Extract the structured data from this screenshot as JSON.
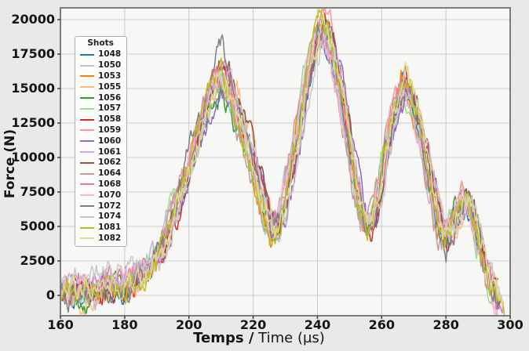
{
  "colors": {
    "figure_bg": "#e9e9e7",
    "plot_bg": "#f7f7f5",
    "grid": "#cbcbcb",
    "spine": "#7d7d7d",
    "tick": "#333333",
    "text": "#151515",
    "legend_bg": "#fbfbf9",
    "legend_border": "#b0b0b0"
  },
  "chart_data": {
    "type": "line",
    "title": "",
    "xlabel": "Temps / Time (µs)",
    "xlabel_bold": "Temps /",
    "xlabel_regular": " Time (µs)",
    "ylabel": "Force (N)",
    "xlim": [
      160,
      300
    ],
    "ylim": [
      -1480,
      20850
    ],
    "xticks": [
      160,
      180,
      200,
      220,
      240,
      260,
      280,
      300
    ],
    "yticks": [
      0,
      2500,
      5000,
      7500,
      10000,
      12500,
      15000,
      17500,
      20000
    ],
    "grid": true,
    "legend": {
      "title": "Shots",
      "position": "upper-left"
    },
    "description": "18 overlapping noisy force-vs-time shot traces; three main peaks near t=210 (~15700 N), t=242 (~19600-20400 N), t=267 (~15600 N), dips near t=226 (~4500 N), t=256 (~4900 N), t=280 (~3900 N), small rebound bump near t=286 (~7100 N), decaying to ~-900 N by t=298",
    "envelope_keypoints": {
      "t": [
        160,
        166,
        172,
        178,
        183,
        188,
        193,
        197,
        201,
        205,
        208,
        210,
        212,
        215,
        219,
        223,
        226,
        229,
        233,
        237,
        240,
        242,
        244,
        247,
        251,
        254,
        256,
        258,
        261,
        264,
        267,
        269,
        272,
        275,
        278,
        280,
        283,
        286,
        288,
        290,
        292,
        294,
        296,
        298.5
      ],
      "force": [
        150,
        150,
        250,
        500,
        900,
        2000,
        4200,
        7000,
        9900,
        13100,
        15200,
        15700,
        15100,
        13300,
        10300,
        6900,
        4500,
        5700,
        10100,
        15600,
        18700,
        19600,
        18500,
        15400,
        9800,
        5900,
        4900,
        6100,
        10100,
        13700,
        15600,
        14800,
        12100,
        8700,
        5300,
        3950,
        5600,
        7100,
        6400,
        4600,
        2600,
        950,
        -300,
        -950
      ]
    },
    "peak_centers_us": [
      210,
      242,
      267
    ],
    "noise_step_us": 0.35,
    "series": [
      {
        "name": "1048",
        "color": "#1f77b4",
        "peak_scales": [
          0.97,
          0.95,
          0.96
        ],
        "time_shift_us": 0.3,
        "noise_scale": 1.0,
        "start_lift_n": 0,
        "end_time_us": 296,
        "seed": 1
      },
      {
        "name": "1050",
        "color": "#aec7e8",
        "peak_scales": [
          1.0,
          0.99,
          0.98
        ],
        "time_shift_us": -0.5,
        "noise_scale": 1.0,
        "start_lift_n": 0,
        "end_time_us": 297,
        "seed": 2
      },
      {
        "name": "1053",
        "color": "#ff7f0e",
        "peak_scales": [
          1.0,
          1.01,
          1.01
        ],
        "time_shift_us": 0.8,
        "noise_scale": 1.05,
        "start_lift_n": 0,
        "end_time_us": 294.5,
        "seed": 3
      },
      {
        "name": "1055",
        "color": "#ffbb78",
        "peak_scales": [
          1.02,
          1.02,
          0.99
        ],
        "time_shift_us": -0.9,
        "noise_scale": 1.0,
        "start_lift_n": 0,
        "end_time_us": 297.5,
        "seed": 4
      },
      {
        "name": "1056",
        "color": "#2ca02c",
        "peak_scales": [
          0.95,
          0.97,
          0.97
        ],
        "time_shift_us": 0.5,
        "noise_scale": 0.95,
        "start_lift_n": 0,
        "end_time_us": 296,
        "seed": 5
      },
      {
        "name": "1057",
        "color": "#98df8a",
        "peak_scales": [
          0.98,
          0.99,
          0.95
        ],
        "time_shift_us": 1.1,
        "noise_scale": 0.95,
        "start_lift_n": 0,
        "end_time_us": 295,
        "seed": 6
      },
      {
        "name": "1058",
        "color": "#d62728",
        "peak_scales": [
          1.02,
          1.03,
          1.04
        ],
        "time_shift_us": -0.3,
        "noise_scale": 1.0,
        "start_lift_n": 0,
        "end_time_us": 296.5,
        "seed": 7
      },
      {
        "name": "1059",
        "color": "#ff9896",
        "peak_scales": [
          1.05,
          1.04,
          0.98
        ],
        "time_shift_us": 0.2,
        "noise_scale": 1.0,
        "start_lift_n": 0,
        "end_time_us": 297,
        "seed": 8
      },
      {
        "name": "1060",
        "color": "#9467bd",
        "peak_scales": [
          0.98,
          1.0,
          0.97
        ],
        "time_shift_us": -1.2,
        "noise_scale": 1.0,
        "start_lift_n": 0,
        "end_time_us": 295.5,
        "seed": 9
      },
      {
        "name": "1061",
        "color": "#c5b0d5",
        "peak_scales": [
          1.01,
          0.98,
          0.96
        ],
        "time_shift_us": 0.6,
        "noise_scale": 1.0,
        "start_lift_n": 0,
        "end_time_us": 296,
        "seed": 10
      },
      {
        "name": "1062",
        "color": "#8c564b",
        "peak_scales": [
          1.03,
          1.02,
          1.0
        ],
        "time_shift_us": -0.7,
        "noise_scale": 1.0,
        "start_lift_n": 0,
        "end_time_us": 297,
        "seed": 11
      },
      {
        "name": "1064",
        "color": "#c49c94",
        "peak_scales": [
          0.99,
          0.99,
          0.98
        ],
        "time_shift_us": 1.3,
        "noise_scale": 1.0,
        "start_lift_n": 0,
        "end_time_us": 295,
        "seed": 12
      },
      {
        "name": "1068",
        "color": "#e377c2",
        "peak_scales": [
          1.04,
          0.97,
          1.01
        ],
        "time_shift_us": -0.2,
        "noise_scale": 1.05,
        "start_lift_n": 900,
        "end_time_us": 298,
        "seed": 13
      },
      {
        "name": "1070",
        "color": "#f7b6d2",
        "peak_scales": [
          0.98,
          0.96,
          0.95
        ],
        "time_shift_us": 0.9,
        "noise_scale": 1.0,
        "start_lift_n": 500,
        "end_time_us": 296.5,
        "seed": 14
      },
      {
        "name": "1072",
        "color": "#7f7f7f",
        "peak_scales": [
          1.13,
          1.0,
          0.98
        ],
        "time_shift_us": 0.0,
        "noise_scale": 1.05,
        "start_lift_n": 0,
        "end_time_us": 297,
        "seed": 15
      },
      {
        "name": "1074",
        "color": "#c7c7c7",
        "peak_scales": [
          1.06,
          0.99,
          0.97
        ],
        "time_shift_us": -1.0,
        "noise_scale": 1.05,
        "start_lift_n": 1100,
        "end_time_us": 298,
        "seed": 16
      },
      {
        "name": "1081",
        "color": "#bcbd22",
        "peak_scales": [
          1.07,
          1.04,
          1.06
        ],
        "time_shift_us": 0.4,
        "noise_scale": 1.1,
        "start_lift_n": 0,
        "end_time_us": 298.3,
        "seed": 17
      },
      {
        "name": "1082",
        "color": "#dbdb8d",
        "peak_scales": [
          1.01,
          1.0,
          1.02
        ],
        "time_shift_us": -0.4,
        "noise_scale": 1.05,
        "start_lift_n": 300,
        "end_time_us": 298,
        "seed": 18
      }
    ]
  }
}
